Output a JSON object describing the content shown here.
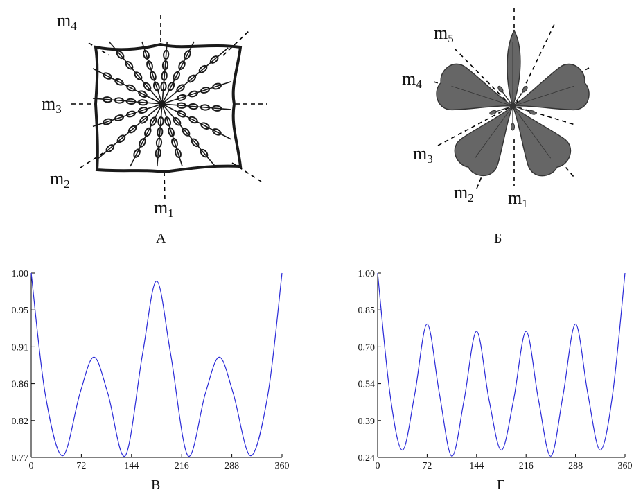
{
  "panels": {
    "a_label": "А",
    "b_label": "Б",
    "c_label": "В",
    "d_label": "Г"
  },
  "figure_a": {
    "axes": [
      {
        "name": "m",
        "sub": "1"
      },
      {
        "name": "m",
        "sub": "2"
      },
      {
        "name": "m",
        "sub": "3"
      },
      {
        "name": "m",
        "sub": "4"
      }
    ]
  },
  "figure_b": {
    "axes": [
      {
        "name": "m",
        "sub": "1"
      },
      {
        "name": "m",
        "sub": "2"
      },
      {
        "name": "m",
        "sub": "3"
      },
      {
        "name": "m",
        "sub": "4"
      },
      {
        "name": "m",
        "sub": "5"
      }
    ]
  },
  "colors": {
    "curve": "#2b2bd8",
    "petal": "#666666",
    "drawing": "#1a1a1a"
  },
  "chart_data": [
    {
      "type": "line",
      "title": "",
      "xlabel": "",
      "ylabel": "",
      "xlim": [
        0,
        360
      ],
      "ylim": [
        0.77,
        1.0
      ],
      "x_ticks": [
        "0",
        "72",
        "144",
        "216",
        "288",
        "360"
      ],
      "y_ticks": [
        "0.77",
        "0.82",
        "0.86",
        "0.91",
        "0.95",
        "1.00"
      ],
      "grid": false,
      "series": [
        {
          "x": [
            0,
            20,
            45,
            70,
            90,
            110,
            135,
            160,
            180,
            200,
            225,
            250,
            270,
            290,
            315,
            340,
            360
          ],
          "y": [
            1.0,
            0.85,
            0.772,
            0.85,
            0.895,
            0.85,
            0.772,
            0.9,
            0.99,
            0.9,
            0.772,
            0.85,
            0.895,
            0.85,
            0.772,
            0.85,
            1.0
          ]
        }
      ]
    },
    {
      "type": "line",
      "title": "",
      "xlabel": "",
      "ylabel": "",
      "xlim": [
        0,
        360
      ],
      "ylim": [
        0.24,
        1.0
      ],
      "x_ticks": [
        "0",
        "72",
        "144",
        "216",
        "288",
        "360"
      ],
      "y_ticks": [
        "0.24",
        "0.39",
        "0.54",
        "0.70",
        "0.85",
        "1.00"
      ],
      "grid": false,
      "series": [
        {
          "x": [
            0,
            18,
            36,
            54,
            72,
            90,
            108,
            126,
            144,
            162,
            180,
            198,
            216,
            234,
            252,
            270,
            288,
            306,
            324,
            342,
            360
          ],
          "y": [
            1.0,
            0.5,
            0.27,
            0.5,
            0.79,
            0.5,
            0.245,
            0.48,
            0.76,
            0.48,
            0.27,
            0.48,
            0.76,
            0.48,
            0.245,
            0.5,
            0.79,
            0.5,
            0.27,
            0.5,
            1.0
          ]
        }
      ]
    }
  ]
}
